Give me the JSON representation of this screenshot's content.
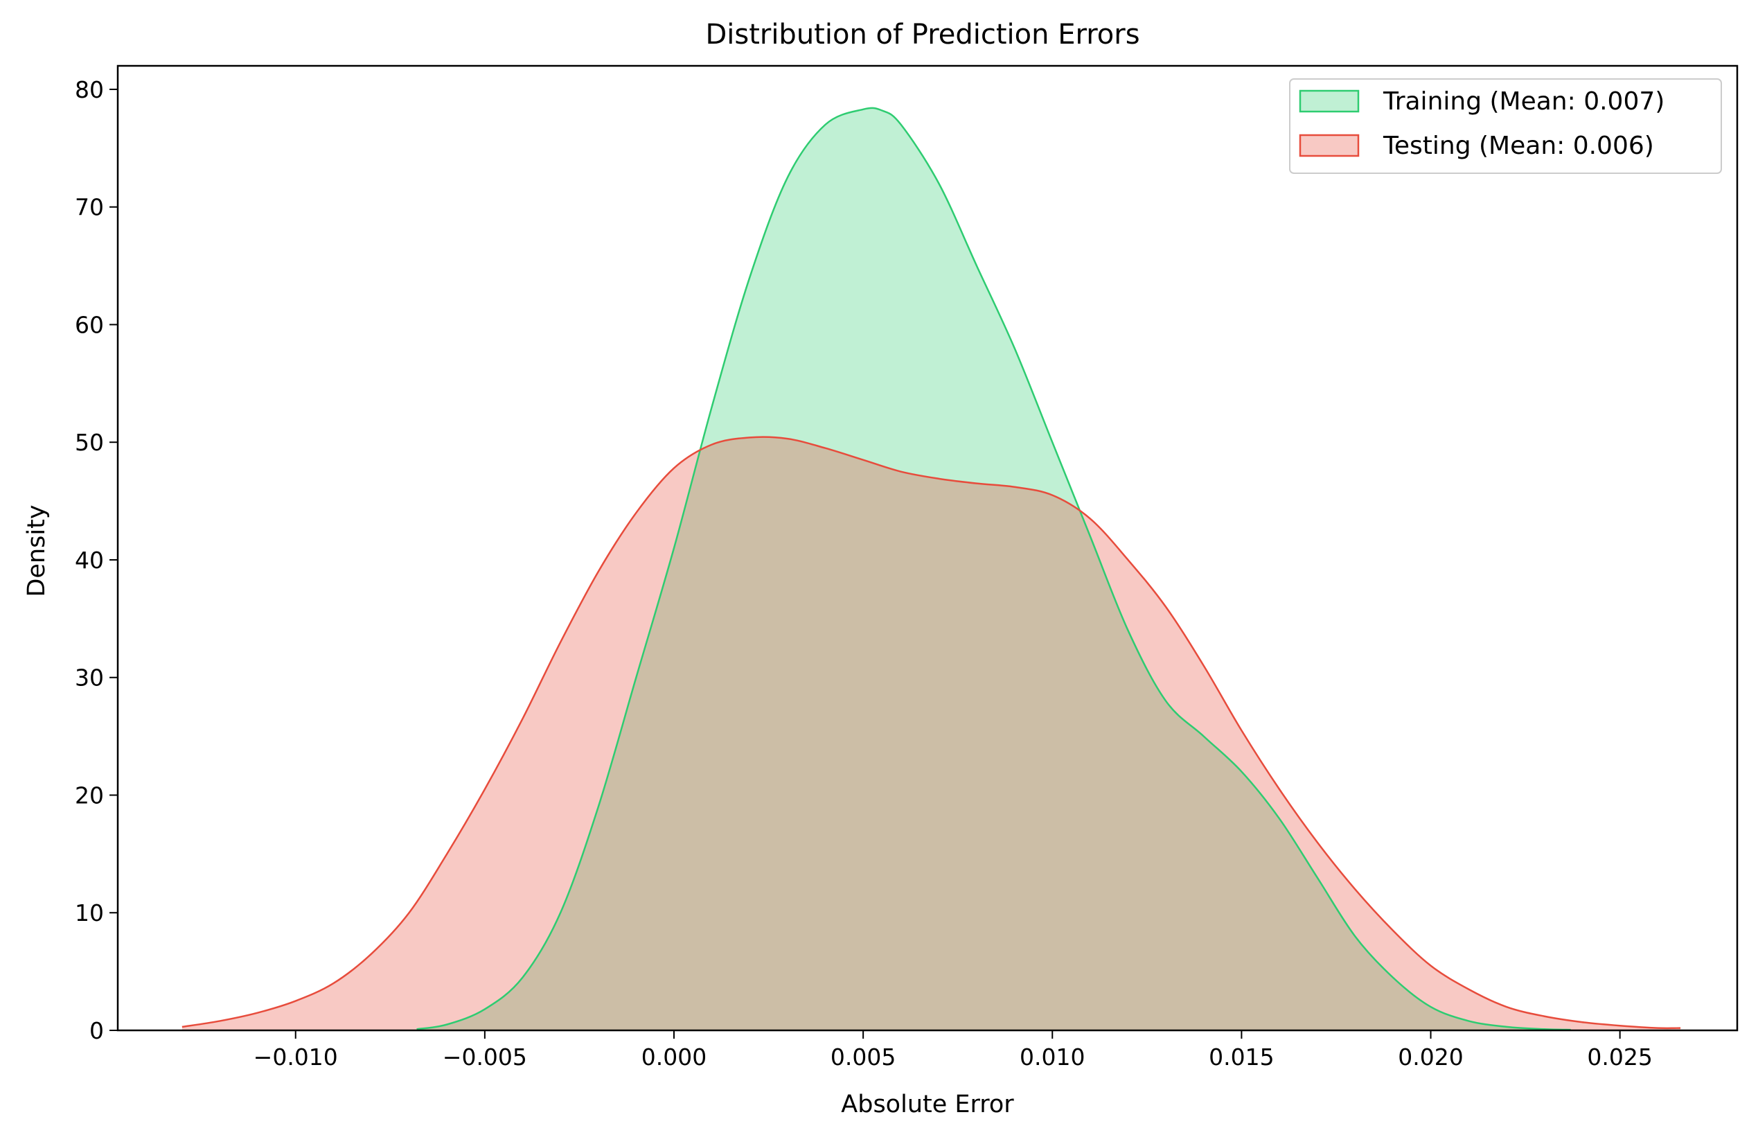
{
  "chart_data": {
    "type": "area",
    "title": "Distribution of Prediction Errors",
    "xlabel": "Absolute Error",
    "ylabel": "Density",
    "xlim": [
      -0.0147,
      0.0281
    ],
    "ylim": [
      0,
      82
    ],
    "xticks": [
      -0.01,
      -0.005,
      0.0,
      0.005,
      0.01,
      0.015,
      0.02,
      0.025
    ],
    "xtick_labels": [
      "−0.010",
      "−0.005",
      "0.000",
      "0.005",
      "0.010",
      "0.015",
      "0.020",
      "0.025"
    ],
    "yticks": [
      0,
      10,
      20,
      30,
      40,
      50,
      60,
      70,
      80
    ],
    "ytick_labels": [
      "0",
      "10",
      "20",
      "30",
      "40",
      "50",
      "60",
      "70",
      "80"
    ],
    "grid": false,
    "legend_position": "top-right",
    "series": [
      {
        "name": "Training (Mean: 0.007)",
        "color": "#2ecc71",
        "fill_opacity": 0.3,
        "x": [
          -0.0068,
          -0.006,
          -0.005,
          -0.004,
          -0.003,
          -0.002,
          -0.001,
          0.0,
          0.001,
          0.002,
          0.003,
          0.004,
          0.005,
          0.0055,
          0.006,
          0.007,
          0.008,
          0.009,
          0.01,
          0.011,
          0.012,
          0.013,
          0.014,
          0.015,
          0.016,
          0.017,
          0.018,
          0.019,
          0.02,
          0.021,
          0.022,
          0.023,
          0.0237
        ],
        "y": [
          0.1,
          0.5,
          1.8,
          4.5,
          10,
          19,
          30,
          41,
          53,
          64,
          72.5,
          77,
          78.3,
          78.2,
          77,
          72,
          65,
          58,
          50,
          42,
          34,
          28,
          25,
          22,
          18,
          13,
          8,
          4.5,
          2,
          0.8,
          0.3,
          0.1,
          0.05
        ]
      },
      {
        "name": "Testing (Mean: 0.006)",
        "color": "#e74c3c",
        "fill_opacity": 0.3,
        "x": [
          -0.013,
          -0.012,
          -0.011,
          -0.01,
          -0.009,
          -0.008,
          -0.007,
          -0.006,
          -0.005,
          -0.004,
          -0.003,
          -0.002,
          -0.001,
          0.0,
          0.001,
          0.002,
          0.003,
          0.004,
          0.005,
          0.006,
          0.007,
          0.008,
          0.009,
          0.01,
          0.011,
          0.012,
          0.013,
          0.014,
          0.015,
          0.016,
          0.017,
          0.018,
          0.019,
          0.02,
          0.021,
          0.022,
          0.023,
          0.024,
          0.025,
          0.026,
          0.0266
        ],
        "y": [
          0.3,
          0.8,
          1.5,
          2.5,
          4,
          6.5,
          10,
          15,
          20.5,
          26.5,
          33,
          39,
          44,
          47.8,
          49.8,
          50.4,
          50.3,
          49.5,
          48.5,
          47.5,
          46.9,
          46.5,
          46.2,
          45.5,
          43.5,
          40,
          36,
          31,
          25.5,
          20.5,
          16,
          12,
          8.5,
          5.5,
          3.5,
          2,
          1.2,
          0.7,
          0.4,
          0.2,
          0.2
        ]
      }
    ]
  }
}
